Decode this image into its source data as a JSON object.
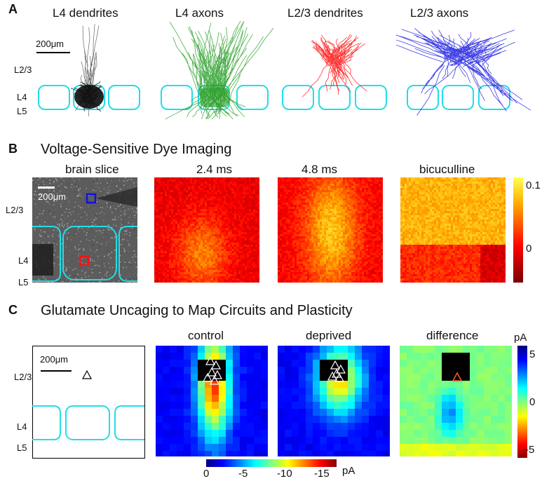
{
  "panel_a": {
    "letter": "A",
    "titles": [
      "L4 dendrites",
      "L4 axons",
      "L2/3 dendrites",
      "L2/3 axons"
    ],
    "scale": "200μm",
    "layers": [
      "L2/3",
      "L4",
      "L5"
    ],
    "colors": {
      "l4_dend": "#111111",
      "l4_axon": "#1f9a1f",
      "l23_dend": "#ff1010",
      "l23_axon": "#1010e0",
      "barrel": "#22dde8"
    }
  },
  "panel_b": {
    "letter": "B",
    "heading": "Voltage-Sensitive Dye Imaging",
    "titles": [
      "brain slice",
      "2.4 ms",
      "4.8 ms",
      "bicuculline"
    ],
    "scale": "200μm",
    "layers": [
      "L2/3",
      "L4",
      "L5"
    ],
    "colorbar_ticks": [
      "0.1",
      "0"
    ]
  },
  "panel_c": {
    "letter": "C",
    "heading": "Glutamate Uncaging to Map Circuits and Plasticity",
    "titles": [
      "control",
      "deprived",
      "difference"
    ],
    "scale": "200μm",
    "layers": [
      "L2/3",
      "L4",
      "L5"
    ],
    "bottom_colorbar": {
      "ticks": [
        "0",
        "-5",
        "-10",
        "-15"
      ],
      "unit": "pA"
    },
    "right_colorbar": {
      "unit": "pA",
      "ticks": [
        "5",
        "0",
        "-5"
      ]
    }
  }
}
